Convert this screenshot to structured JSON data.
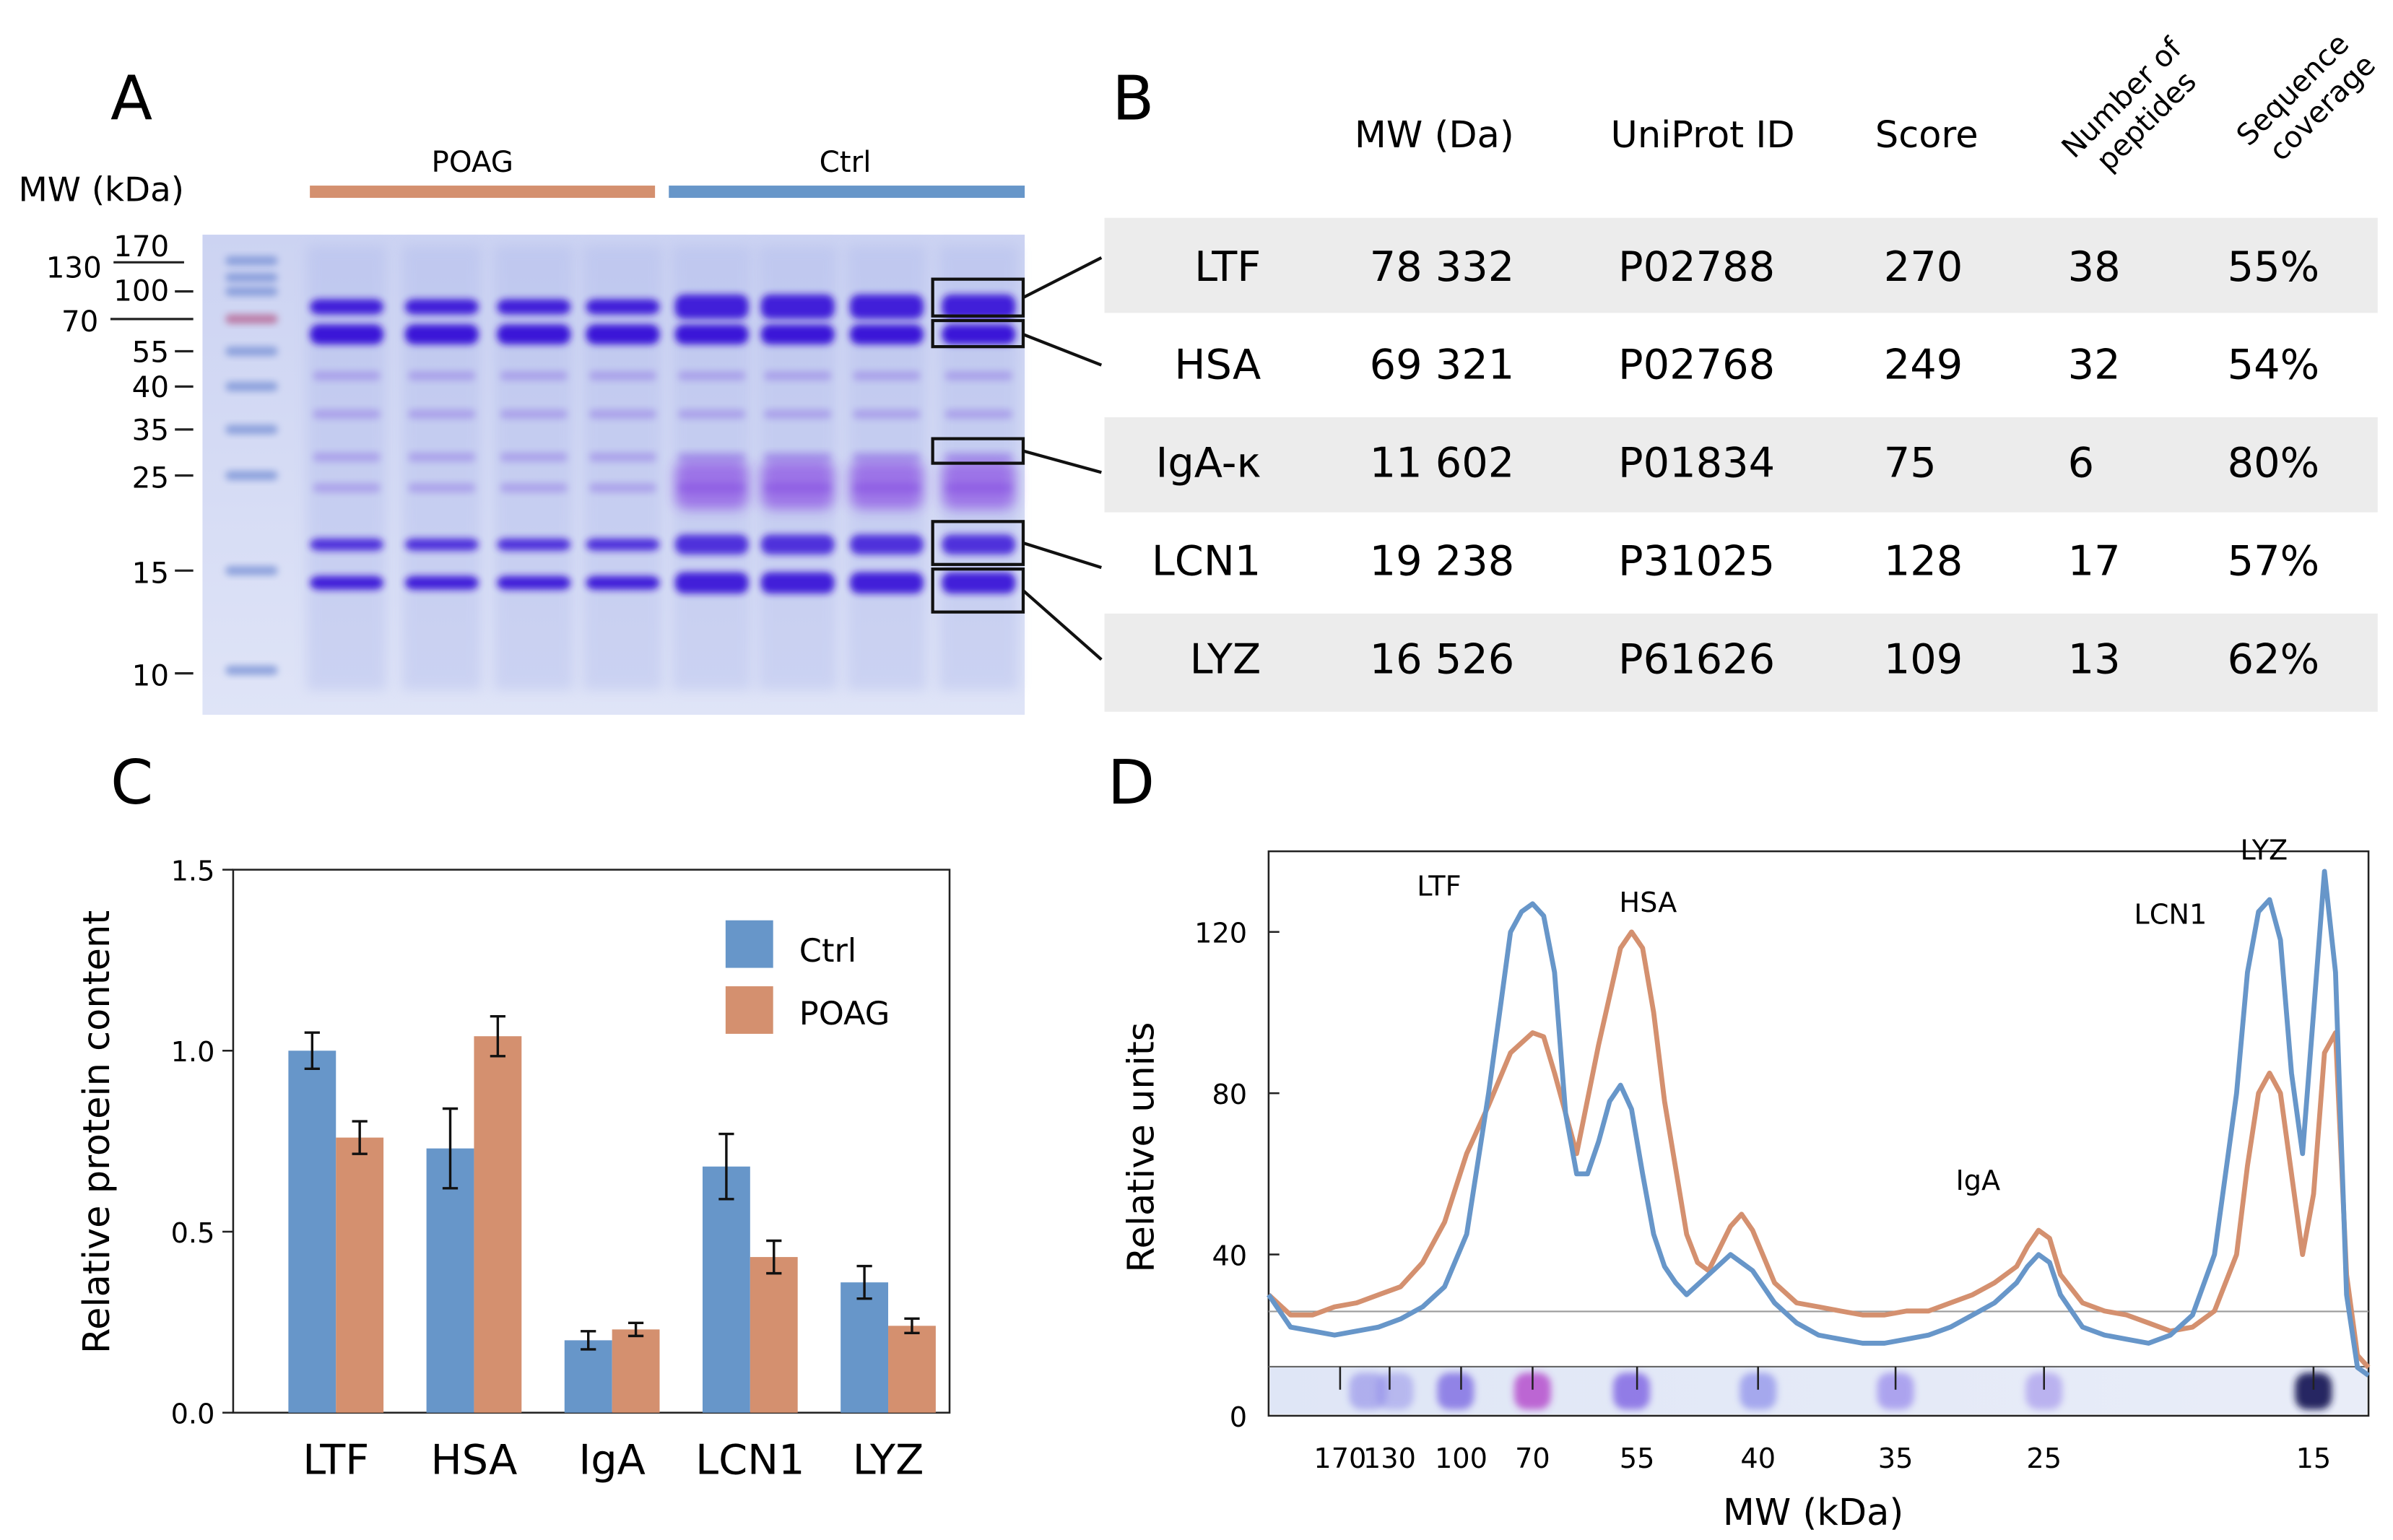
{
  "panels": {
    "a": "A",
    "b": "B",
    "c": "C",
    "d": "D"
  },
  "colors": {
    "ctrl": "#6796c9",
    "poag": "#d4906f",
    "table_band": "#ececec"
  },
  "gel": {
    "mw_axis_label": "MW (kDa)",
    "markers": [
      "170",
      "130",
      "100",
      "70",
      "55",
      "40",
      "35",
      "25",
      "15",
      "10"
    ],
    "groups": [
      {
        "label": "POAG",
        "color": "#d4906f"
      },
      {
        "label": "Ctrl",
        "color": "#6796c9"
      }
    ]
  },
  "table": {
    "columns": [
      "MW (Da)",
      "UniProt ID",
      "Score",
      "Number of peptides",
      "Sequence coverage"
    ],
    "rotated_headers": [
      [
        "Number of",
        "peptides"
      ],
      [
        "Sequence",
        "coverage"
      ]
    ],
    "rows": [
      {
        "name": "LTF",
        "mw": "78 332",
        "uniprot": "P02788",
        "score": "270",
        "peptides": "38",
        "coverage": "55%"
      },
      {
        "name": "HSA",
        "mw": "69 321",
        "uniprot": "P02768",
        "score": "249",
        "peptides": "32",
        "coverage": "54%"
      },
      {
        "name": "IgA-κ",
        "mw": "11 602",
        "uniprot": "P01834",
        "score": "75",
        "peptides": "6",
        "coverage": "80%"
      },
      {
        "name": "LCN1",
        "mw": "19 238",
        "uniprot": "P31025",
        "score": "128",
        "peptides": "17",
        "coverage": "57%"
      },
      {
        "name": "LYZ",
        "mw": "16 526",
        "uniprot": "P61626",
        "score": "109",
        "peptides": "13",
        "coverage": "62%"
      }
    ]
  },
  "chart_data": [
    {
      "type": "bar",
      "panel": "C",
      "title": "",
      "xlabel": "",
      "ylabel": "Relative protein content",
      "ylim": [
        0,
        1.5
      ],
      "yticks": [
        "0.0",
        "0.5",
        "1.0",
        "1.5"
      ],
      "legend_position": "top-right",
      "categories": [
        "LTF",
        "HSA",
        "IgA",
        "LCN1",
        "LYZ"
      ],
      "series": [
        {
          "name": "Ctrl",
          "values": [
            1.0,
            0.73,
            0.2,
            0.68,
            0.36
          ],
          "errors": [
            0.05,
            0.11,
            0.025,
            0.09,
            0.045
          ]
        },
        {
          "name": "POAG",
          "values": [
            0.76,
            1.04,
            0.23,
            0.43,
            0.24
          ],
          "errors": [
            0.045,
            0.055,
            0.018,
            0.045,
            0.02
          ]
        }
      ]
    },
    {
      "type": "line",
      "panel": "D",
      "xlabel": "MW (kDa)",
      "ylabel": "Relative units",
      "ylim": [
        0,
        140
      ],
      "yticks": [
        "0",
        "40",
        "80",
        "120"
      ],
      "xlim": [
        0,
        100
      ],
      "xtick_labels": [
        {
          "label": "170",
          "x": 6.5
        },
        {
          "label": "130",
          "x": 11.0
        },
        {
          "label": "100",
          "x": 17.5
        },
        {
          "label": "70",
          "x": 24.0
        },
        {
          "label": "55",
          "x": 33.5
        },
        {
          "label": "40",
          "x": 44.5
        },
        {
          "label": "35",
          "x": 57.0
        },
        {
          "label": "25",
          "x": 70.5
        },
        {
          "label": "15",
          "x": 95.0
        }
      ],
      "peak_labels": [
        {
          "label": "LTF",
          "x": 15.5,
          "y": 129
        },
        {
          "label": "HSA",
          "x": 34.5,
          "y": 125
        },
        {
          "label": "IgA",
          "x": 64.5,
          "y": 56
        },
        {
          "label": "LCN1",
          "x": 82.0,
          "y": 122
        },
        {
          "label": "LYZ",
          "x": 90.5,
          "y": 138
        }
      ],
      "series": [
        {
          "name": "Ctrl",
          "x": [
            0,
            2,
            4,
            6,
            8,
            10,
            12,
            14,
            16,
            18,
            20,
            21,
            22,
            23,
            24,
            25,
            26,
            27,
            28,
            29,
            30,
            31,
            32,
            33,
            34,
            35,
            36,
            37,
            38,
            40,
            42,
            44,
            46,
            48,
            50,
            52,
            54,
            56,
            58,
            60,
            62,
            64,
            66,
            68,
            69,
            70,
            71,
            72,
            74,
            76,
            78,
            80,
            82,
            84,
            86,
            88,
            89,
            90,
            91,
            92,
            93,
            94,
            95,
            96,
            97,
            98,
            99,
            100
          ],
          "y": [
            30,
            22,
            21,
            20,
            21,
            22,
            24,
            27,
            32,
            45,
            80,
            100,
            120,
            125,
            127,
            124,
            110,
            75,
            60,
            60,
            68,
            78,
            82,
            76,
            60,
            45,
            37,
            33,
            30,
            35,
            40,
            36,
            28,
            23,
            20,
            19,
            18,
            18,
            19,
            20,
            22,
            25,
            28,
            33,
            37,
            40,
            38,
            30,
            22,
            20,
            19,
            18,
            20,
            25,
            40,
            80,
            110,
            125,
            128,
            118,
            85,
            65,
            100,
            135,
            110,
            30,
            12,
            10
          ]
        },
        {
          "name": "POAG",
          "x": [
            0,
            2,
            4,
            6,
            8,
            10,
            12,
            14,
            16,
            18,
            20,
            22,
            24,
            25,
            26,
            28,
            30,
            32,
            33,
            34,
            35,
            36,
            38,
            39,
            40,
            42,
            43,
            44,
            46,
            48,
            50,
            52,
            54,
            56,
            58,
            60,
            62,
            64,
            66,
            68,
            69,
            70,
            71,
            72,
            74,
            76,
            78,
            80,
            82,
            84,
            86,
            88,
            89,
            90,
            91,
            92,
            93,
            94,
            95,
            96,
            97,
            98,
            99,
            100
          ],
          "y": [
            30,
            25,
            25,
            27,
            28,
            30,
            32,
            38,
            48,
            65,
            77,
            90,
            95,
            94,
            85,
            65,
            92,
            116,
            120,
            116,
            100,
            78,
            45,
            38,
            36,
            47,
            50,
            46,
            33,
            28,
            27,
            26,
            25,
            25,
            26,
            26,
            28,
            30,
            33,
            37,
            42,
            46,
            44,
            35,
            28,
            26,
            25,
            23,
            21,
            22,
            26,
            40,
            62,
            80,
            85,
            80,
            60,
            40,
            55,
            90,
            95,
            35,
            15,
            12
          ]
        }
      ]
    }
  ]
}
